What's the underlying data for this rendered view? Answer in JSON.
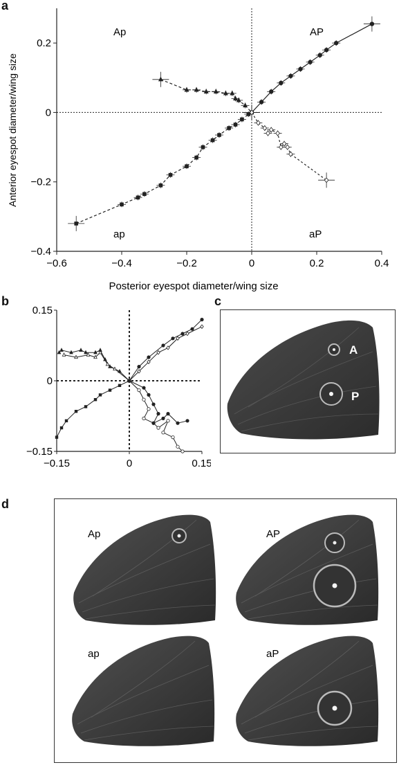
{
  "figure": {
    "panel_a": "a",
    "panel_b": "b",
    "panel_c": "c",
    "panel_d": "d"
  },
  "panel_a": {
    "ylabel": "Anterior eyespot diameter/wing size",
    "xlabel": "Posterior eyespot diameter/wing size",
    "quadrants": {
      "tl": "Ap",
      "tr": "AP",
      "bl": "ap",
      "br": "aP"
    },
    "xticks": [
      "−0.6",
      "−0.4",
      "−0.2",
      "0",
      "0.2",
      "0.4"
    ],
    "yticks": [
      "0.2",
      "0",
      "−0.2",
      "−0.4"
    ]
  },
  "panel_b": {
    "xticks": [
      "−0.15",
      "0",
      "0.15"
    ],
    "yticks": [
      "0.15",
      "0",
      "−0.15"
    ]
  },
  "panel_c": {
    "eyespot_labels": [
      "A",
      "P"
    ]
  },
  "panel_d": {
    "wings": [
      "Ap",
      "AP",
      "ap",
      "aP"
    ]
  },
  "chart_data": [
    {
      "type": "scatter",
      "panel": "a",
      "xlabel": "Posterior eyespot diameter/wing size",
      "ylabel": "Anterior eyespot diameter/wing size",
      "xlim": [
        -0.6,
        0.4
      ],
      "ylim": [
        -0.4,
        0.3
      ],
      "series": [
        {
          "marker": "square",
          "x": [
            -0.54,
            -0.4,
            -0.35,
            -0.33,
            -0.28,
            -0.25,
            -0.2,
            -0.17,
            -0.15,
            -0.12,
            -0.1,
            -0.07,
            -0.05,
            -0.03,
            -0.01,
            0.0
          ],
          "y": [
            -0.32,
            -0.265,
            -0.245,
            -0.235,
            -0.21,
            -0.18,
            -0.155,
            -0.13,
            -0.1,
            -0.08,
            -0.065,
            -0.045,
            -0.035,
            -0.02,
            -0.005,
            0.0
          ]
        },
        {
          "marker": "circle",
          "x": [
            0.0,
            0.03,
            0.06,
            0.09,
            0.12,
            0.15,
            0.18,
            0.21,
            0.23,
            0.26,
            0.37
          ],
          "y": [
            0.0,
            0.03,
            0.06,
            0.085,
            0.105,
            0.125,
            0.145,
            0.165,
            0.18,
            0.2,
            0.255
          ]
        },
        {
          "marker": "triangle",
          "x": [
            -0.28,
            -0.2,
            -0.17,
            -0.14,
            -0.11,
            -0.08,
            -0.06,
            -0.05,
            -0.04,
            -0.02,
            0.0
          ],
          "y": [
            0.095,
            0.065,
            0.065,
            0.06,
            0.06,
            0.055,
            0.055,
            0.04,
            0.035,
            0.02,
            0.0
          ]
        },
        {
          "marker": "diamond",
          "x": [
            0.0,
            0.02,
            0.04,
            0.05,
            0.06,
            0.08,
            0.09,
            0.1,
            0.11,
            0.12,
            0.23
          ],
          "y": [
            0.0,
            -0.03,
            -0.045,
            -0.06,
            -0.05,
            -0.06,
            -0.1,
            -0.09,
            -0.1,
            -0.12,
            -0.195
          ]
        }
      ]
    },
    {
      "type": "line",
      "panel": "b",
      "xlim": [
        -0.15,
        0.15
      ],
      "ylim": [
        -0.15,
        0.15
      ],
      "series": [
        {
          "marker": "square",
          "x": [
            -0.15,
            -0.14,
            -0.13,
            -0.11,
            -0.09,
            -0.07,
            -0.06,
            -0.04,
            -0.02,
            0.0
          ],
          "y": [
            -0.12,
            -0.1,
            -0.085,
            -0.065,
            -0.055,
            -0.04,
            -0.03,
            -0.02,
            -0.01,
            0.0
          ]
        },
        {
          "marker": "diamond",
          "x": [
            0.0,
            0.02,
            0.04,
            0.06,
            0.08,
            0.1,
            0.12,
            0.15
          ],
          "y": [
            0.0,
            0.02,
            0.04,
            0.06,
            0.07,
            0.09,
            0.1,
            0.115
          ]
        },
        {
          "marker": "circle",
          "x": [
            0.0,
            0.02,
            0.04,
            0.07,
            0.09,
            0.11,
            0.13,
            0.15
          ],
          "y": [
            0.0,
            0.03,
            0.05,
            0.075,
            0.09,
            0.1,
            0.11,
            0.13
          ]
        },
        {
          "marker": "triangle",
          "x": [
            -0.145,
            -0.14,
            -0.12,
            -0.1,
            -0.09,
            -0.07,
            -0.06,
            -0.05,
            -0.04,
            -0.02,
            0.0
          ],
          "y": [
            0.06,
            0.065,
            0.06,
            0.065,
            0.06,
            0.06,
            0.065,
            0.045,
            0.03,
            0.02,
            0.0
          ]
        },
        {
          "marker": "triangle-open",
          "x": [
            -0.135,
            -0.11,
            -0.085,
            -0.07,
            -0.06,
            -0.045,
            -0.03,
            0.0
          ],
          "y": [
            0.055,
            0.05,
            0.055,
            0.05,
            0.06,
            0.035,
            0.025,
            0.0
          ]
        },
        {
          "marker": "circle-open",
          "x": [
            0.0,
            0.02,
            0.03,
            0.04,
            0.03,
            0.05,
            0.06,
            0.08,
            0.07,
            0.09,
            0.1,
            0.11
          ],
          "y": [
            0.0,
            -0.02,
            -0.04,
            -0.06,
            -0.08,
            -0.09,
            -0.1,
            -0.085,
            -0.11,
            -0.12,
            -0.14,
            -0.15
          ]
        },
        {
          "marker": "circle-filled",
          "x": [
            0.0,
            0.03,
            0.04,
            0.05,
            0.06,
            0.05,
            0.07,
            0.08,
            0.1,
            0.12
          ],
          "y": [
            0.0,
            -0.015,
            -0.03,
            -0.05,
            -0.07,
            -0.09,
            -0.08,
            -0.07,
            -0.09,
            -0.085
          ]
        }
      ]
    }
  ]
}
